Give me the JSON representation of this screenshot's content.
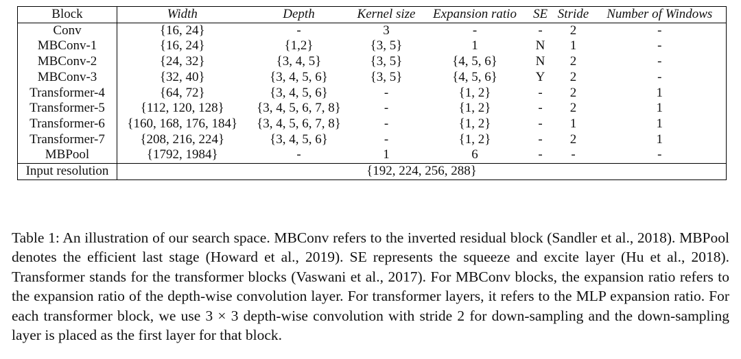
{
  "table": {
    "headers": [
      "Block",
      "Width",
      "Depth",
      "Kernel size",
      "Expansion ratio",
      "SE",
      "Stride",
      "Number of Windows"
    ],
    "rows": [
      [
        "Conv",
        "{16, 24}",
        "-",
        "3",
        "-",
        "-",
        "2",
        "-"
      ],
      [
        "MBConv-1",
        "{16, 24}",
        "{1,2}",
        "{3, 5}",
        "1",
        "N",
        "1",
        "-"
      ],
      [
        "MBConv-2",
        "{24, 32}",
        "{3, 4, 5}",
        "{3, 5}",
        "{4, 5, 6}",
        "N",
        "2",
        "-"
      ],
      [
        "MBConv-3",
        "{32, 40}",
        "{3, 4, 5, 6}",
        "{3, 5}",
        "{4, 5, 6}",
        "Y",
        "2",
        "-"
      ],
      [
        "Transformer-4",
        "{64, 72}",
        "{3, 4, 5, 6}",
        "-",
        "{1, 2}",
        "-",
        "2",
        "1"
      ],
      [
        "Transformer-5",
        "{112, 120, 128}",
        "{3, 4, 5, 6, 7, 8}",
        "-",
        "{1, 2}",
        "-",
        "2",
        "1"
      ],
      [
        "Transformer-6",
        "{160, 168, 176, 184}",
        "{3, 4, 5, 6, 7, 8}",
        "-",
        "{1, 2}",
        "-",
        "1",
        "1"
      ],
      [
        "Transformer-7",
        "{208, 216, 224}",
        "{3, 4, 5, 6}",
        "-",
        "{1, 2}",
        "-",
        "2",
        "1"
      ],
      [
        "MBPool",
        "{1792, 1984}",
        "-",
        "1",
        "6",
        "-",
        "-",
        "-"
      ]
    ],
    "resolution": {
      "label": "Input resolution",
      "value": "{192, 224, 256, 288}"
    }
  },
  "caption": {
    "text": "Table 1: An illustration of our search space. MBConv refers to the inverted residual block (Sandler et al., 2018). MBPool denotes the efficient last stage (Howard et al., 2019). SE represents the squeeze and excite layer (Hu et al., 2018). Transformer stands for the transformer blocks (Vaswani et al., 2017). For MBConv blocks, the expansion ratio refers to the expansion ratio of the depth-wise convolution layer. For transformer layers, it refers to the MLP expansion ratio. For each transformer block, we use 3 × 3 depth-wise convolution with stride 2 for down-sampling and the down-sampling layer is placed as the first layer for that block."
  }
}
